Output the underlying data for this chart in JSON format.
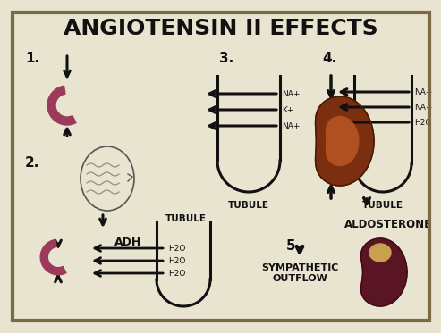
{
  "title": "ANGIOTENSIN II EFFECTS",
  "title_fontsize": 18,
  "title_fontweight": "bold",
  "bg_color": "#e8e4d0",
  "text_color": "#111111",
  "arrow_color": "#111111",
  "vessel_color": "#9b3a5a",
  "tubule_color": "#111111",
  "adh_label": "ADH",
  "tubule_label": "TUBULE",
  "aldosterone_label": "ALDOSTERONE",
  "sympathetic_label": "SYMPATHETIC\nOUTFLOW",
  "na_k_labels_3": [
    "NA+",
    "K+",
    "NA+"
  ],
  "na_h2o_labels_4": [
    "NA+",
    "NA+",
    "H2O"
  ],
  "h2o_labels_2": [
    "H2O",
    "H2O",
    "H2O"
  ],
  "border_color": "#7a6a45"
}
